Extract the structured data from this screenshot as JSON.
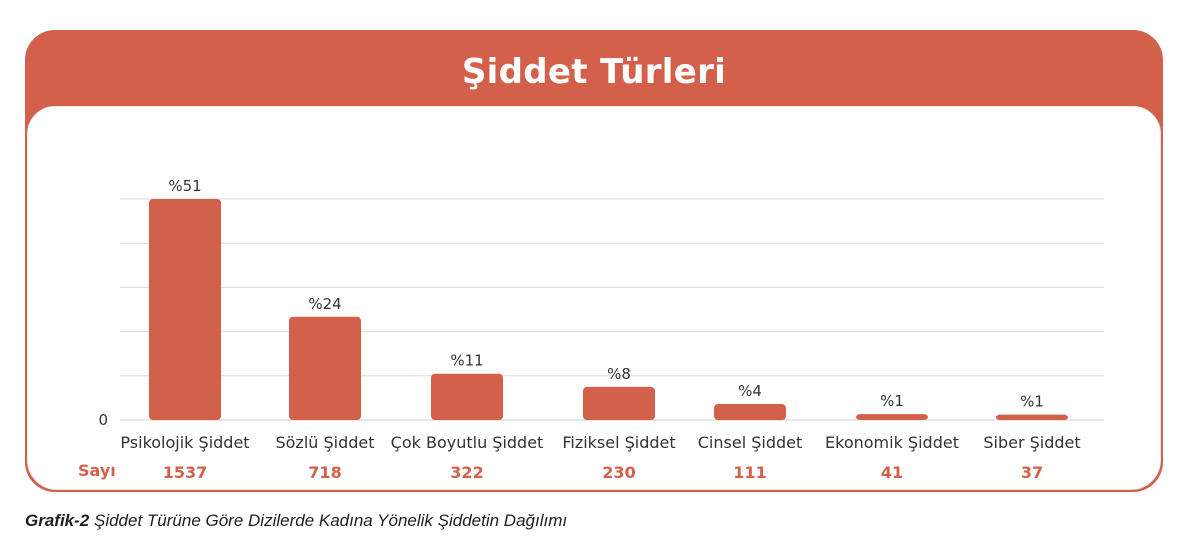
{
  "title": "Şiddet Türleri",
  "caption": {
    "label": "Grafik-2",
    "text": "Şiddet Türüne Göre Dizilerde Kadına Yönelik Şiddetin Dağılımı"
  },
  "colors": {
    "accent": "#d3604a",
    "bar": "#d3604a",
    "grid": "#d9d9d9",
    "text": "#333333",
    "count": "#d3604a"
  },
  "chart_data": {
    "type": "bar",
    "categories": [
      "Psikolojik Şiddet",
      "Sözlü Şiddet",
      "Çok Boyutlu Şiddet",
      "Fiziksel Şiddet",
      "Cinsel Şiddet",
      "Ekonomik Şiddet",
      "Siber Şiddet"
    ],
    "values": [
      1537,
      718,
      322,
      230,
      111,
      41,
      37
    ],
    "percent_labels": [
      "%51",
      "%24",
      "%11",
      "%8",
      "%4",
      "%1",
      "%1"
    ],
    "count_row_label": "Sayı",
    "y_tick_labels": [
      "0"
    ],
    "grid": true,
    "legend": "none"
  }
}
